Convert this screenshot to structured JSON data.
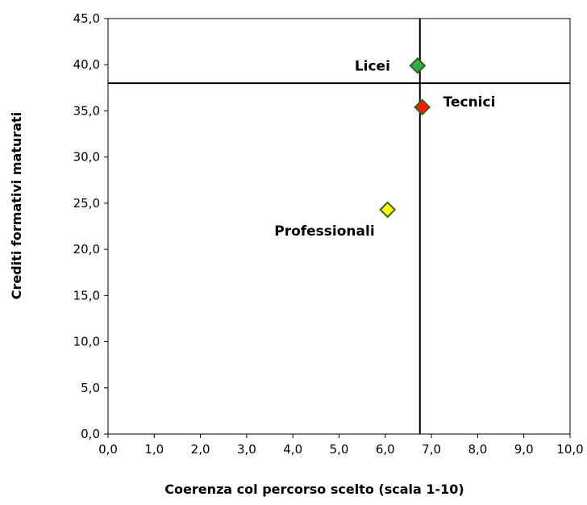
{
  "chart_data": {
    "type": "scatter",
    "title": "",
    "xlabel": "Coerenza col percorso scelto (scala 1-10)",
    "ylabel": "Crediti formativi maturati",
    "xlim": [
      0,
      10
    ],
    "ylim": [
      0,
      45
    ],
    "x_ticks": [
      "0,0",
      "1,0",
      "2,0",
      "3,0",
      "4,0",
      "5,0",
      "6,0",
      "7,0",
      "8,0",
      "9,0",
      "10,0"
    ],
    "y_ticks": [
      "0,0",
      "5,0",
      "10,0",
      "15,0",
      "20,0",
      "25,0",
      "30,0",
      "35,0",
      "40,0",
      "45,0"
    ],
    "grid": false,
    "legend": "none",
    "marker": "diamond",
    "points": [
      {
        "label": "Licei",
        "x": 6.7,
        "y": 39.9,
        "color": "#2db04b"
      },
      {
        "label": "Tecnici",
        "x": 6.8,
        "y": 35.4,
        "color": "#ff1a00"
      },
      {
        "label": "Professionali",
        "x": 6.05,
        "y": 24.3,
        "color": "#ffff00"
      }
    ],
    "reference_lines": {
      "x": 6.75,
      "y": 38.0
    }
  }
}
